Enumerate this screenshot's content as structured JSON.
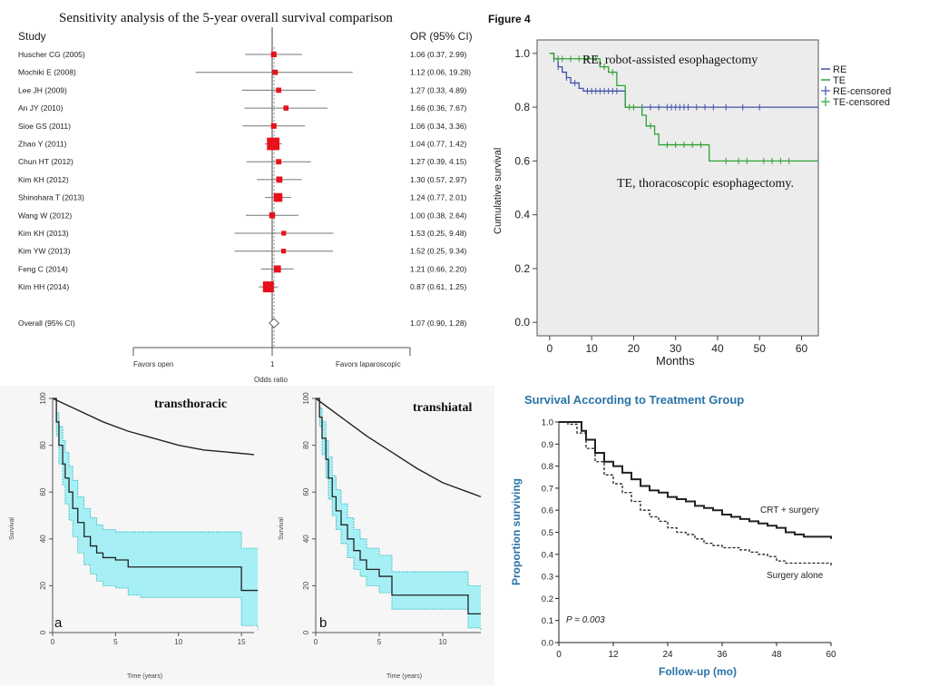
{
  "chart_data": [
    {
      "type": "forest",
      "title": "Sensitivity analysis of the 5-year overall survival comparison",
      "col_study": "Study",
      "col_or": "OR (95% CI)",
      "xlabel": "Odds ratio",
      "favors_left": "Favors open",
      "favors_right": "Favors laparoscopic",
      "ref_tick": "1",
      "studies": [
        {
          "name": "Huscher CG (2005)",
          "or": 1.06,
          "lo": 0.37,
          "hi": 2.99,
          "label": "1.06 (0.37, 2.99)"
        },
        {
          "name": "Mochiki E (2008)",
          "or": 1.12,
          "lo": 0.06,
          "hi": 19.28,
          "label": "1.12 (0.06, 19.28)"
        },
        {
          "name": "Lee JH (2009)",
          "or": 1.27,
          "lo": 0.33,
          "hi": 4.89,
          "label": "1.27 (0.33, 4.89)"
        },
        {
          "name": "An JY (2010)",
          "or": 1.66,
          "lo": 0.36,
          "hi": 7.67,
          "label": "1.66 (0.36, 7.67)"
        },
        {
          "name": "Sioe GS (2011)",
          "or": 1.06,
          "lo": 0.34,
          "hi": 3.36,
          "label": "1.06 (0.34, 3.36)"
        },
        {
          "name": "Zhao Y (2011)",
          "or": 1.04,
          "lo": 0.77,
          "hi": 1.42,
          "label": "1.04 (0.77, 1.42)"
        },
        {
          "name": "Chun HT (2012)",
          "or": 1.27,
          "lo": 0.39,
          "hi": 4.15,
          "label": "1.27 (0.39, 4.15)"
        },
        {
          "name": "Kim KH (2012)",
          "or": 1.3,
          "lo": 0.57,
          "hi": 2.97,
          "label": "1.30 (0.57, 2.97)"
        },
        {
          "name": "Shinohara T (2013)",
          "or": 1.24,
          "lo": 0.77,
          "hi": 2.01,
          "label": "1.24 (0.77, 2.01)"
        },
        {
          "name": "Wang W (2012)",
          "or": 1.0,
          "lo": 0.38,
          "hi": 2.64,
          "label": "1.00 (0.38, 2.64)"
        },
        {
          "name": "Kim KH (2013)",
          "or": 1.53,
          "lo": 0.25,
          "hi": 9.48,
          "label": "1.53 (0.25, 9.48)"
        },
        {
          "name": "Kim YW (2013)",
          "or": 1.52,
          "lo": 0.25,
          "hi": 9.34,
          "label": "1.52 (0.25, 9.34)"
        },
        {
          "name": "Feng C (2014)",
          "or": 1.21,
          "lo": 0.66,
          "hi": 2.2,
          "label": "1.21 (0.66, 2.20)"
        },
        {
          "name": "Kim HH (2014)",
          "or": 0.87,
          "lo": 0.61,
          "hi": 1.25,
          "label": "0.87 (0.61, 1.25)"
        }
      ],
      "overall": {
        "name": "Overall (95% CI)",
        "or": 1.07,
        "lo": 0.9,
        "hi": 1.28,
        "label": "1.07 (0.90, 1.28)"
      },
      "colors": {
        "box": "#e8111b",
        "ci": "#777777"
      }
    },
    {
      "type": "line",
      "figure_label": "Figure 4",
      "xlabel": "Months",
      "ylabel": "Cumulative survival",
      "xlim": [
        -3,
        64
      ],
      "ylim": [
        -0.05,
        1.05
      ],
      "xticks": [
        0,
        10,
        20,
        30,
        40,
        50,
        60
      ],
      "yticks": [
        0.0,
        0.2,
        0.4,
        0.6,
        0.8,
        1.0
      ],
      "annotations": [
        "RE, robot-assisted esophagectomy",
        "TE, thoracoscopic esophagectomy."
      ],
      "legend": [
        "RE",
        "TE",
        "RE-censored",
        "TE-censored"
      ],
      "series": [
        {
          "name": "RE",
          "color": "#4452a8",
          "x": [
            0,
            1,
            1,
            2,
            2,
            3,
            3,
            4,
            4,
            5,
            5,
            7,
            7,
            8,
            8,
            18,
            18,
            64
          ],
          "y": [
            1.0,
            1.0,
            0.98,
            0.98,
            0.95,
            0.95,
            0.93,
            0.93,
            0.91,
            0.91,
            0.89,
            0.89,
            0.87,
            0.87,
            0.86,
            0.86,
            0.8,
            0.8
          ],
          "censored_x": [
            1,
            2,
            4,
            6,
            9,
            10,
            11,
            12,
            13,
            14,
            15,
            16,
            22,
            24,
            26,
            28,
            29,
            30,
            31,
            32,
            33,
            35,
            37,
            39,
            42,
            46,
            50
          ]
        },
        {
          "name": "TE",
          "color": "#2fa135",
          "x": [
            0,
            1,
            1,
            12,
            12,
            14,
            14,
            16,
            16,
            18,
            18,
            22,
            22,
            23,
            23,
            25,
            25,
            26,
            26,
            38,
            38,
            64
          ],
          "y": [
            1.0,
            1.0,
            0.98,
            0.98,
            0.95,
            0.95,
            0.93,
            0.93,
            0.88,
            0.88,
            0.8,
            0.8,
            0.77,
            0.77,
            0.73,
            0.73,
            0.7,
            0.7,
            0.66,
            0.66,
            0.6,
            0.6
          ],
          "censored_x": [
            2,
            3,
            5,
            7,
            9,
            11,
            13,
            15,
            19,
            20,
            24,
            28,
            30,
            32,
            34,
            36,
            42,
            45,
            47,
            51,
            53,
            55,
            57
          ]
        }
      ],
      "colors": {
        "plot_bg": "#ececec"
      }
    },
    {
      "type": "area",
      "label": "transthoracic",
      "panel_letter": "a",
      "xlabel": "Time (years)",
      "ylabel": "Survival",
      "xlim": [
        0,
        16
      ],
      "ylim": [
        0,
        100
      ],
      "xticks": [
        0,
        5,
        10,
        15
      ],
      "yticks": [
        0,
        20,
        40,
        60,
        80,
        100
      ],
      "expected": {
        "x": [
          0,
          2,
          4,
          6,
          8,
          10,
          12,
          14,
          16
        ],
        "y": [
          100,
          95,
          90,
          86,
          83,
          80,
          78,
          77,
          76
        ]
      },
      "observed": {
        "x": [
          0,
          0.3,
          0.5,
          0.8,
          1.0,
          1.3,
          1.6,
          2.0,
          2.5,
          3.0,
          3.5,
          4.0,
          5.0,
          6.0,
          7.0,
          10.0,
          13.0,
          15.0,
          16.3
        ],
        "y": [
          100,
          90,
          80,
          72,
          66,
          60,
          53,
          47,
          41,
          37,
          34,
          32,
          31,
          28,
          28,
          28,
          28,
          18,
          18
        ]
      },
      "ci_upper": {
        "x": [
          0,
          0.3,
          0.5,
          0.8,
          1.0,
          1.3,
          1.6,
          2.0,
          2.5,
          3.0,
          3.5,
          4.0,
          5.0,
          6.0,
          7.0,
          10.0,
          13.0,
          15.0,
          16.3
        ],
        "y": [
          100,
          94,
          88,
          82,
          77,
          71,
          65,
          58,
          53,
          49,
          46,
          44,
          43,
          43,
          43,
          43,
          43,
          36,
          36
        ]
      },
      "ci_lower": {
        "x": [
          0,
          0.3,
          0.5,
          0.8,
          1.0,
          1.3,
          1.6,
          2.0,
          2.5,
          3.0,
          3.5,
          4.0,
          5.0,
          6.0,
          7.0,
          10.0,
          13.0,
          15.0,
          16.3
        ],
        "y": [
          100,
          84,
          72,
          63,
          55,
          48,
          41,
          34,
          29,
          25,
          22,
          20,
          19,
          16,
          15,
          15,
          15,
          3,
          1
        ]
      },
      "colors": {
        "band": "#a6f0f5",
        "band_edge": "#35b7c4"
      }
    },
    {
      "type": "area",
      "label": "transhiatal",
      "panel_letter": "b",
      "xlabel": "Time (years)",
      "ylabel": "Survival",
      "xlim": [
        0,
        13
      ],
      "ylim": [
        0,
        100
      ],
      "xticks": [
        0,
        5,
        10
      ],
      "yticks": [
        0,
        20,
        40,
        60,
        80,
        100
      ],
      "expected": {
        "x": [
          0,
          2,
          4,
          6,
          8,
          10,
          12,
          13
        ],
        "y": [
          100,
          92,
          84,
          77,
          70,
          64,
          60,
          58
        ]
      },
      "observed": {
        "x": [
          0,
          0.3,
          0.5,
          0.8,
          1.0,
          1.3,
          1.6,
          2.0,
          2.5,
          3.0,
          3.5,
          4.0,
          5.0,
          6.0,
          8.0,
          11.0,
          12.0,
          13.0
        ],
        "y": [
          100,
          92,
          83,
          74,
          66,
          58,
          52,
          46,
          40,
          35,
          31,
          27,
          24,
          16,
          16,
          16,
          8,
          8
        ]
      },
      "ci_upper": {
        "x": [
          0,
          0.3,
          0.5,
          0.8,
          1.0,
          1.3,
          1.6,
          2.0,
          2.5,
          3.0,
          3.5,
          4.0,
          5.0,
          6.0,
          8.0,
          11.0,
          12.0,
          13.0
        ],
        "y": [
          100,
          96,
          90,
          82,
          75,
          67,
          61,
          55,
          49,
          44,
          40,
          36,
          33,
          26,
          26,
          26,
          20,
          20
        ]
      },
      "ci_lower": {
        "x": [
          0,
          0.3,
          0.5,
          0.8,
          1.0,
          1.3,
          1.6,
          2.0,
          2.5,
          3.0,
          3.5,
          4.0,
          5.0,
          6.0,
          8.0,
          11.0,
          12.0,
          13.0
        ],
        "y": [
          100,
          88,
          76,
          66,
          57,
          50,
          44,
          38,
          32,
          27,
          24,
          20,
          17,
          10,
          10,
          10,
          2,
          1
        ]
      },
      "colors": {
        "band": "#a6f0f5",
        "band_edge": "#35b7c4"
      }
    },
    {
      "type": "line",
      "title": "Survival According to Treatment Group",
      "xlabel": "Follow-up (mo)",
      "ylabel": "Proportion surviving",
      "xlim": [
        0,
        60
      ],
      "ylim": [
        0,
        1
      ],
      "xticks": [
        0,
        12,
        24,
        36,
        48,
        60
      ],
      "yticks": [
        0.0,
        0.1,
        0.2,
        0.3,
        0.4,
        0.5,
        0.6,
        0.7,
        0.8,
        0.9,
        1.0
      ],
      "annotation": "P = 0.003",
      "series": [
        {
          "name": "CRT + surgery",
          "style": "solid",
          "x": [
            0,
            3,
            5,
            6,
            8,
            10,
            12,
            14,
            16,
            18,
            20,
            22,
            24,
            26,
            28,
            30,
            32,
            34,
            36,
            38,
            40,
            42,
            44,
            46,
            48,
            50,
            52,
            54,
            56,
            58,
            60
          ],
          "y": [
            1.0,
            1.0,
            0.96,
            0.92,
            0.86,
            0.82,
            0.8,
            0.77,
            0.74,
            0.71,
            0.69,
            0.68,
            0.66,
            0.65,
            0.64,
            0.62,
            0.61,
            0.6,
            0.58,
            0.57,
            0.56,
            0.55,
            0.54,
            0.53,
            0.52,
            0.5,
            0.49,
            0.48,
            0.48,
            0.48,
            0.47
          ]
        },
        {
          "name": "Surgery alone",
          "style": "dashed",
          "x": [
            0,
            2,
            4,
            6,
            8,
            10,
            12,
            14,
            16,
            18,
            20,
            22,
            24,
            26,
            28,
            30,
            32,
            34,
            36,
            38,
            40,
            42,
            44,
            46,
            48,
            50,
            52,
            54,
            56,
            58,
            60
          ],
          "y": [
            1.0,
            0.99,
            0.95,
            0.88,
            0.82,
            0.76,
            0.72,
            0.68,
            0.64,
            0.6,
            0.57,
            0.55,
            0.52,
            0.5,
            0.49,
            0.47,
            0.45,
            0.44,
            0.43,
            0.43,
            0.42,
            0.41,
            0.4,
            0.39,
            0.37,
            0.36,
            0.36,
            0.36,
            0.36,
            0.36,
            0.35
          ]
        }
      ],
      "colors": {
        "title": "#2a73a6",
        "axis_label": "#2a73a6",
        "line": "#222222"
      }
    }
  ]
}
